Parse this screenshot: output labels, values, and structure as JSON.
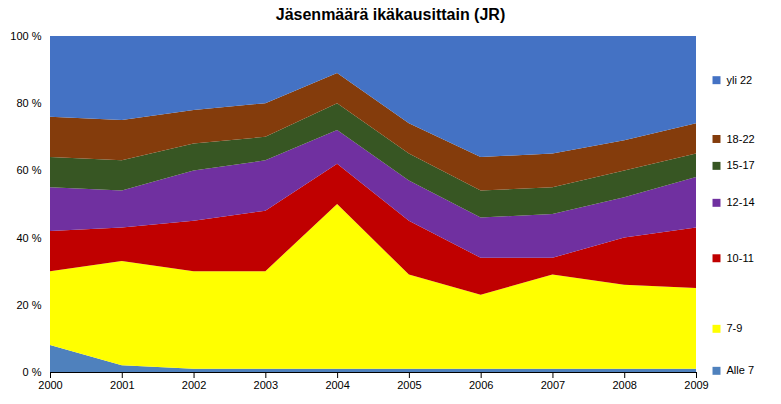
{
  "chart_data": {
    "type": "area",
    "title": "Jäsenmäärä ikäkausittain (JR)",
    "x": [
      2000,
      2001,
      2002,
      2003,
      2004,
      2005,
      2006,
      2007,
      2008,
      2009
    ],
    "series": [
      {
        "name": "Alle 7",
        "color": "#4f81bd",
        "values": [
          8,
          2,
          1,
          1,
          1,
          1,
          1,
          1,
          1,
          1
        ]
      },
      {
        "name": "7-9",
        "color": "#ffff00",
        "values": [
          22,
          31,
          29,
          29,
          49,
          28,
          22,
          28,
          25,
          24
        ]
      },
      {
        "name": "10-11",
        "color": "#c00000",
        "values": [
          12,
          10,
          15,
          18,
          12,
          16,
          11,
          5,
          14,
          18
        ]
      },
      {
        "name": "12-14",
        "color": "#7030a0",
        "values": [
          13,
          11,
          15,
          15,
          10,
          12,
          12,
          13,
          12,
          15
        ]
      },
      {
        "name": "15-17",
        "color": "#375623",
        "values": [
          9,
          9,
          8,
          7,
          8,
          8,
          8,
          8,
          8,
          7
        ]
      },
      {
        "name": "18-22",
        "color": "#843c0c",
        "values": [
          12,
          12,
          10,
          10,
          9,
          9,
          10,
          10,
          9,
          9
        ]
      },
      {
        "name": "yli 22",
        "color": "#4472c4",
        "values": [
          24,
          25,
          22,
          20,
          11,
          26,
          36,
          35,
          31,
          26
        ]
      }
    ],
    "stacked": true,
    "xlim": [
      2000,
      2009
    ],
    "xticks": [
      2000,
      2001,
      2002,
      2003,
      2004,
      2005,
      2006,
      2007,
      2008,
      2009
    ],
    "ylim": [
      0,
      100
    ],
    "yticks": [
      {
        "value": 0,
        "label": "0 %"
      },
      {
        "value": 20,
        "label": "20 %"
      },
      {
        "value": 40,
        "label": "40 %"
      },
      {
        "value": 60,
        "label": "60 %"
      },
      {
        "value": 80,
        "label": "80 %"
      },
      {
        "value": 100,
        "label": "100 %"
      }
    ],
    "grid": false,
    "legend": "right"
  }
}
